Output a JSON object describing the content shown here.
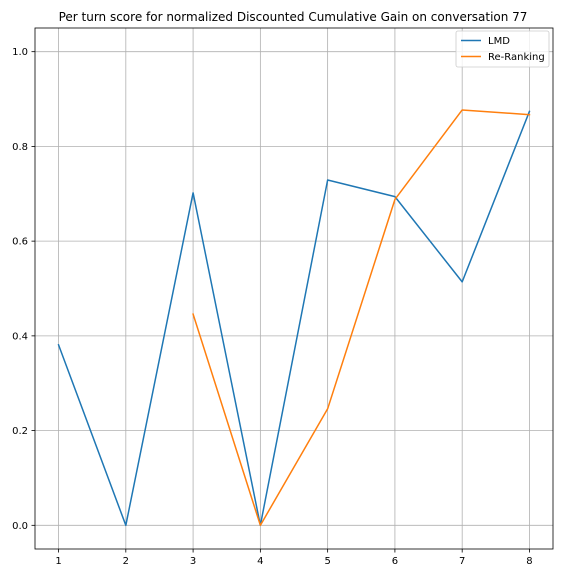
{
  "chart_data": {
    "type": "line",
    "title": "Per turn score for normalized Discounted Cumulative Gain on conversation 77",
    "xlabel": "",
    "ylabel": "",
    "xlim": [
      0.65,
      8.35
    ],
    "ylim": [
      -0.05,
      1.05
    ],
    "xticks": [
      1,
      2,
      3,
      4,
      5,
      6,
      7,
      8
    ],
    "xtick_labels": [
      "1",
      "2",
      "3",
      "4",
      "5",
      "6",
      "7",
      "8"
    ],
    "yticks": [
      0.0,
      0.2,
      0.4,
      0.6,
      0.8,
      1.0
    ],
    "ytick_labels": [
      "0.0",
      "0.2",
      "0.4",
      "0.6",
      "0.8",
      "1.0"
    ],
    "grid": true,
    "legend_position": "top-right",
    "series": [
      {
        "name": "LMD",
        "color": "#1f77b4",
        "x": [
          1,
          2,
          3,
          4,
          5,
          6,
          7,
          8
        ],
        "y": [
          0.381,
          0.0,
          0.702,
          0.0,
          0.729,
          0.694,
          0.514,
          0.874
        ]
      },
      {
        "name": "Re-Ranking",
        "color": "#ff7f0e",
        "x": [
          3,
          4,
          5,
          6,
          7,
          8
        ],
        "y": [
          0.446,
          0.0,
          0.246,
          0.688,
          0.877,
          0.867
        ]
      }
    ]
  }
}
